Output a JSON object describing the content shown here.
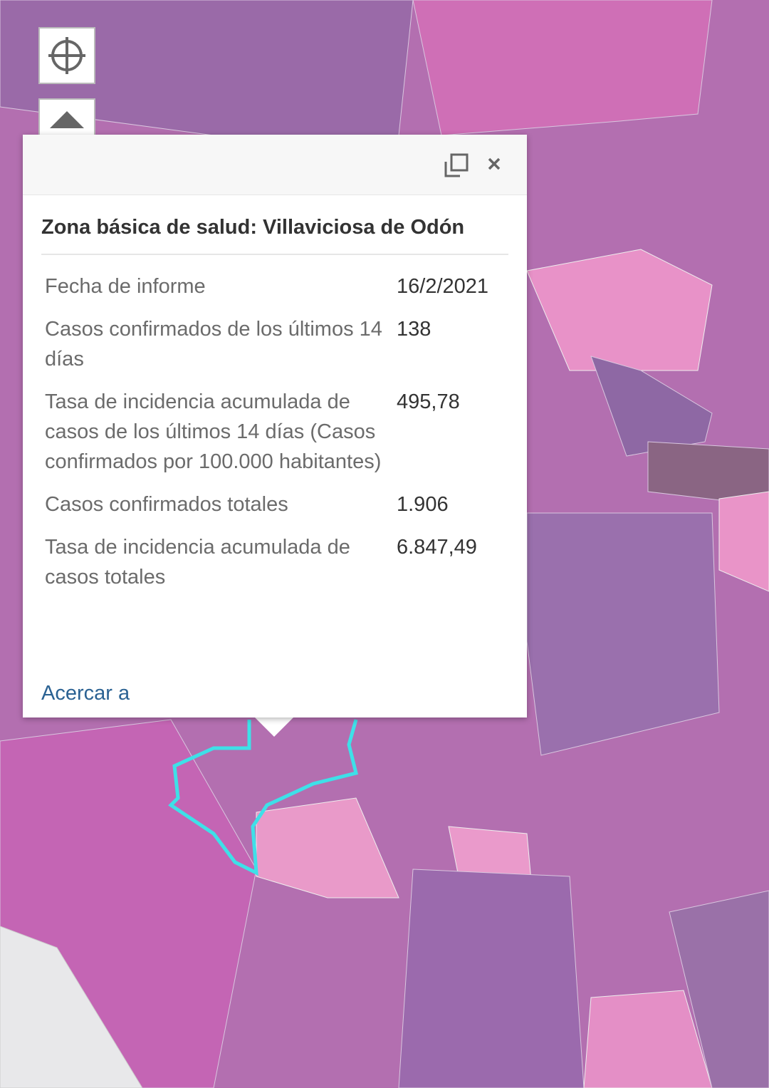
{
  "popup": {
    "title": "Zona básica de salud: Villaviciosa de Odón",
    "rows": [
      [
        "Fecha de informe",
        "16/2/2021"
      ],
      [
        "Casos confirmados de los últimos 14 días",
        "138"
      ],
      [
        "Tasa de incidencia acumulada de casos de los últimos 14 días (Casos confirmados por 100.000 habitantes)",
        "495,78"
      ],
      [
        "Casos confirmados totales",
        "1.906"
      ],
      [
        "Tasa de incidencia acumulada de casos totales",
        "6.847,49"
      ]
    ],
    "link": "Acercar a"
  }
}
